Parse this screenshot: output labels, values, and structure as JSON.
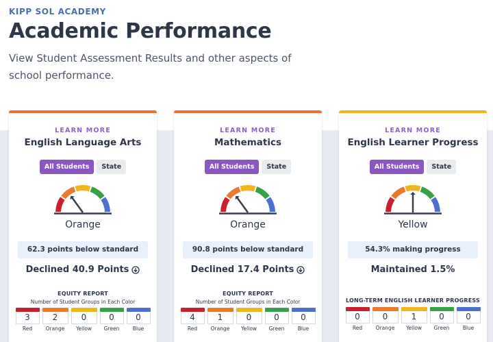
{
  "header": {
    "school": "KIPP SOL ACADEMY",
    "title": "Academic Performance",
    "subtitle": "View Student Assessment Results and other aspects of school performance."
  },
  "colors": {
    "red": "#c8202e",
    "orange": "#ea7a30",
    "yellow": "#f2b51d",
    "green": "#38a046",
    "blue": "#4c6fd0",
    "accent": "#8a56c2"
  },
  "cards": [
    {
      "learn_more": "LEARN MORE",
      "name": "English Language Arts",
      "toggle": {
        "all": "All Students",
        "state": "State"
      },
      "status": "Orange",
      "points": "62.3 points below standard",
      "change": "Declined 40.9 Points",
      "change_icon": "arrow-down-circle-icon",
      "report_title": "EQUITY REPORT",
      "report_subtitle": "Number of Student Groups in Each Color",
      "counts": [
        {
          "label": "Red",
          "value": "3"
        },
        {
          "label": "Orange",
          "value": "2"
        },
        {
          "label": "Yellow",
          "value": "0"
        },
        {
          "label": "Green",
          "value": "0"
        },
        {
          "label": "Blue",
          "value": "0"
        }
      ]
    },
    {
      "learn_more": "LEARN MORE",
      "name": "Mathematics",
      "toggle": {
        "all": "All Students",
        "state": "State"
      },
      "status": "Orange",
      "points": "90.8 points below standard",
      "change": "Declined 17.4 Points",
      "change_icon": "arrow-down-circle-icon",
      "report_title": "EQUITY REPORT",
      "report_subtitle": "Number of Student Groups in Each Color",
      "counts": [
        {
          "label": "Red",
          "value": "4"
        },
        {
          "label": "Orange",
          "value": "1"
        },
        {
          "label": "Yellow",
          "value": "0"
        },
        {
          "label": "Green",
          "value": "0"
        },
        {
          "label": "Blue",
          "value": "0"
        }
      ]
    },
    {
      "learn_more": "LEARN MORE",
      "name": "English Learner Progress",
      "toggle": {
        "all": "All Students",
        "state": "State"
      },
      "status": "Yellow",
      "points": "54.3% making progress",
      "change": "Maintained 1.5%",
      "change_icon": "",
      "report_title": "LONG-TERM ENGLISH LEARNER PROGRESS",
      "report_subtitle": "",
      "counts": [
        {
          "label": "Red",
          "value": "0"
        },
        {
          "label": "Orange",
          "value": "0"
        },
        {
          "label": "Yellow",
          "value": "1"
        },
        {
          "label": "Green",
          "value": "0"
        },
        {
          "label": "Blue",
          "value": "0"
        }
      ]
    }
  ]
}
